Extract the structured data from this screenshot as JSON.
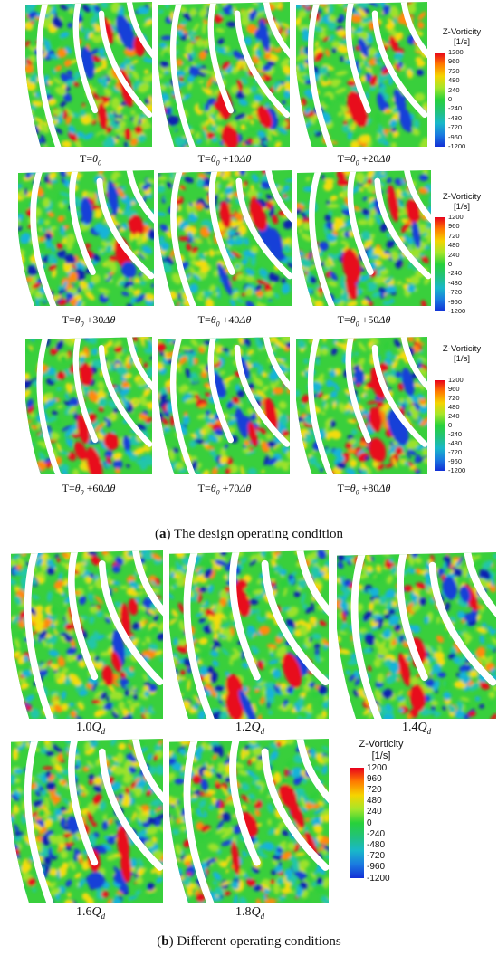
{
  "figure": {
    "section_a": {
      "caption_letter": "a",
      "caption_text": "The design operating condition",
      "panels": [
        {
          "label": "T=θ0"
        },
        {
          "label": "T=θ0 +10Δθ"
        },
        {
          "label": "T=θ0 +20Δθ"
        },
        {
          "label": "T=θ0 +30Δθ"
        },
        {
          "label": "T=θ0 +40Δθ"
        },
        {
          "label": "T=θ0 +50Δθ"
        },
        {
          "label": "T=θ0 +60Δθ"
        },
        {
          "label": "T=θ0 +70Δθ"
        },
        {
          "label": "T=θ0 +80Δθ"
        }
      ]
    },
    "section_b": {
      "caption_letter": "b",
      "caption_text": "Different operating conditions",
      "panels": [
        {
          "label": "1.0Qd"
        },
        {
          "label": "1.2Qd"
        },
        {
          "label": "1.4Qd"
        },
        {
          "label": "1.6Qd"
        },
        {
          "label": "1.8Qd"
        }
      ]
    },
    "legend": {
      "title": "Z-Vorticity",
      "unit": "[1/s]",
      "ticks": [
        "1200",
        "960",
        "720",
        "480",
        "240",
        "0",
        "-240",
        "-480",
        "-720",
        "-960",
        "-1200"
      ],
      "colors": [
        "#e8001c",
        "#ff7a00",
        "#f5d400",
        "#a6e62a",
        "#27d13a",
        "#22c27a",
        "#19b8c9",
        "#1a7be0",
        "#1330d6"
      ]
    }
  }
}
